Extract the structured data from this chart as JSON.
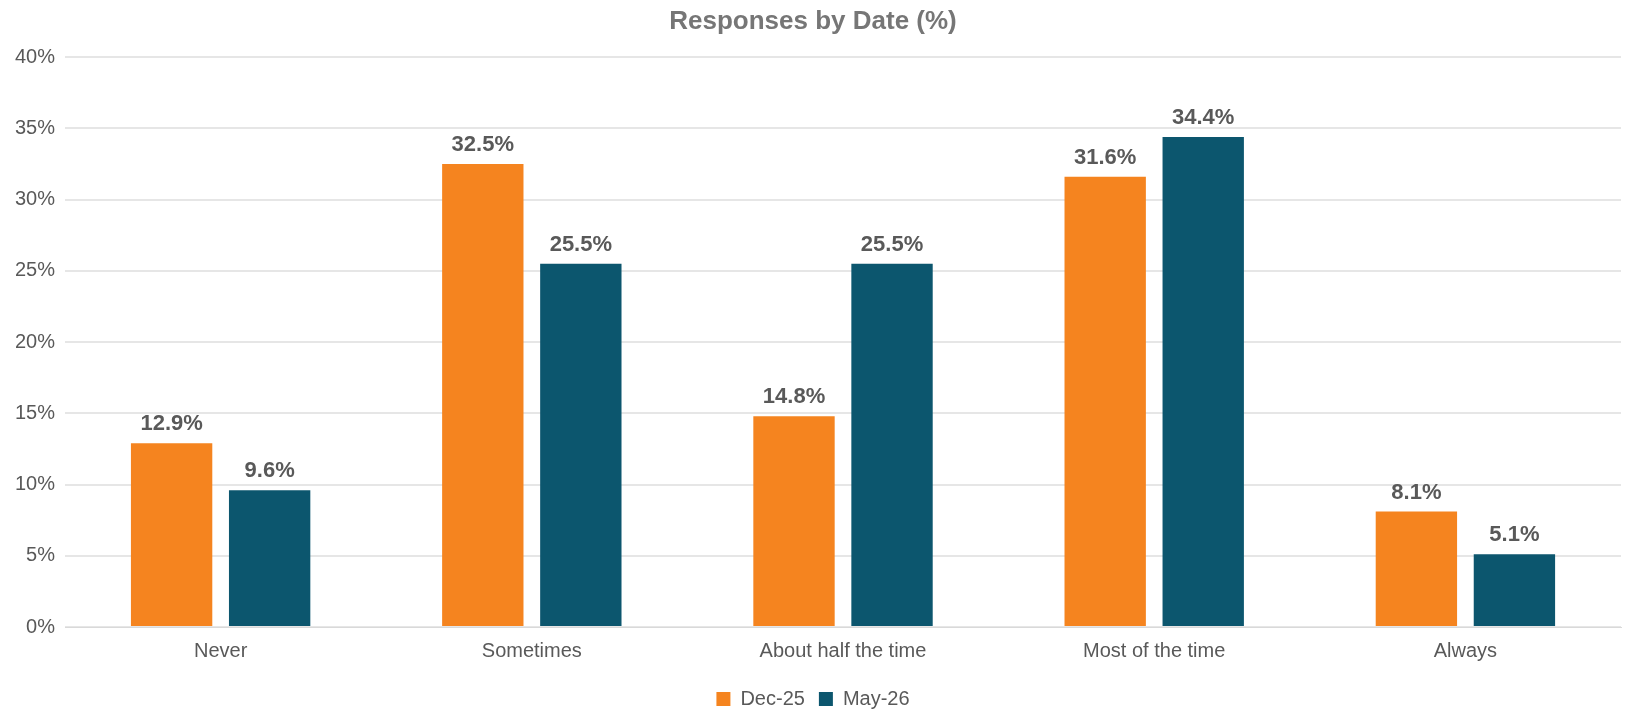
{
  "chart_data": {
    "type": "bar",
    "title": "Responses by Date (%)",
    "categories": [
      "Never",
      "Sometimes",
      "About half the time",
      "Most of the time",
      "Always"
    ],
    "series": [
      {
        "name": "Dec-25",
        "color": "#f5841f",
        "values": [
          12.9,
          32.5,
          14.8,
          31.6,
          8.1
        ],
        "value_labels": [
          "12.9%",
          "32.5%",
          "14.8%",
          "31.6%",
          "8.1%"
        ]
      },
      {
        "name": "May-26",
        "color": "#0c566e",
        "values": [
          9.6,
          25.5,
          25.5,
          34.4,
          5.1
        ],
        "value_labels": [
          "9.6%",
          "25.5%",
          "25.5%",
          "34.4%",
          "5.1%"
        ]
      }
    ],
    "ylim": [
      0,
      40
    ],
    "yticks": [
      {
        "value": 0,
        "label": "0%"
      },
      {
        "value": 5,
        "label": "5%"
      },
      {
        "value": 10,
        "label": "10%"
      },
      {
        "value": 15,
        "label": "15%"
      },
      {
        "value": 20,
        "label": "20%"
      },
      {
        "value": 25,
        "label": "25%"
      },
      {
        "value": 30,
        "label": "30%"
      },
      {
        "value": 35,
        "label": "35%"
      },
      {
        "value": 40,
        "label": "40%"
      }
    ],
    "grid": "y",
    "legend": "bottom"
  }
}
